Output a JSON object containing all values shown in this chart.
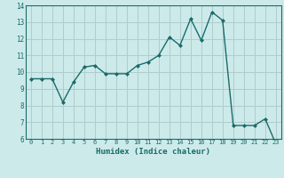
{
  "x": [
    0,
    1,
    2,
    3,
    4,
    5,
    6,
    7,
    8,
    9,
    10,
    11,
    12,
    13,
    14,
    15,
    16,
    17,
    18,
    19,
    20,
    21,
    22,
    23
  ],
  "y": [
    9.6,
    9.6,
    9.6,
    8.2,
    9.4,
    10.3,
    10.4,
    9.9,
    9.9,
    9.9,
    10.4,
    10.6,
    11.0,
    12.1,
    11.6,
    13.2,
    11.9,
    13.6,
    13.1,
    6.8,
    6.8,
    6.8,
    7.2,
    5.7
  ],
  "xlabel": "Humidex (Indice chaleur)",
  "xlim": [
    -0.5,
    23.5
  ],
  "ylim": [
    6,
    14
  ],
  "yticks": [
    6,
    7,
    8,
    9,
    10,
    11,
    12,
    13,
    14
  ],
  "xticks": [
    0,
    1,
    2,
    3,
    4,
    5,
    6,
    7,
    8,
    9,
    10,
    11,
    12,
    13,
    14,
    15,
    16,
    17,
    18,
    19,
    20,
    21,
    22,
    23
  ],
  "line_color": "#1a6b6b",
  "marker": "D",
  "marker_size": 2.0,
  "bg_color": "#cdeaea",
  "grid_color": "#b0cccc",
  "tick_color": "#1a6b6b",
  "label_color": "#1a6b6b",
  "spine_color": "#1a6b6b"
}
